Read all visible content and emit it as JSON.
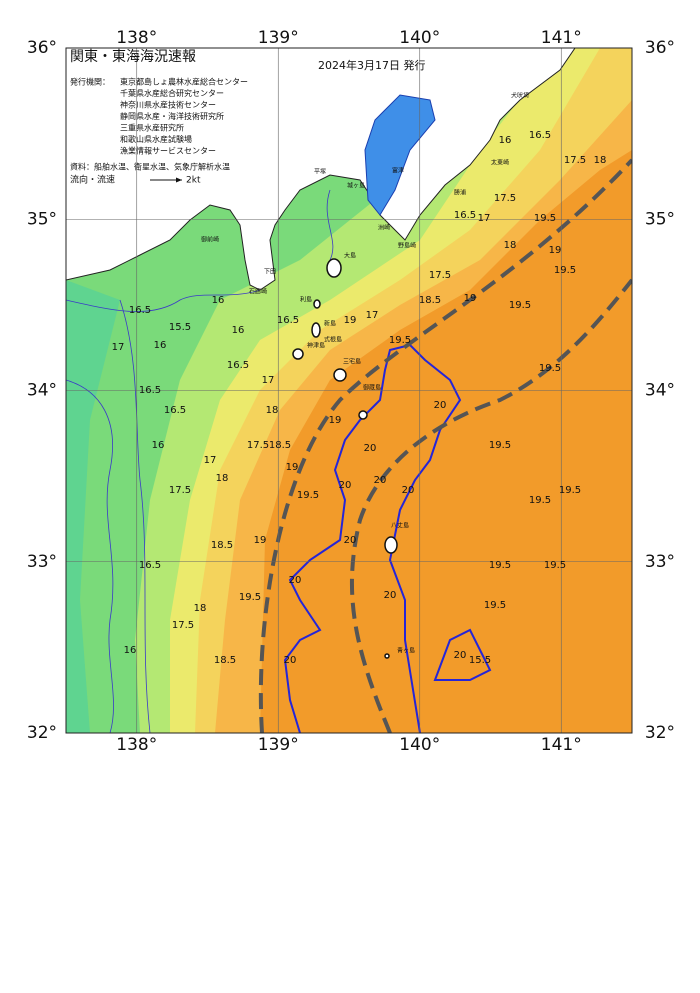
{
  "header": {
    "title": "関東・東海海況速報",
    "date": "2024年3月17日 発行",
    "issuer_label": "発行機関：",
    "issuers": [
      "東京都島しょ農林水産総合センター",
      "千葉県水産総合研究センター",
      "神奈川県水産技術センター",
      "静岡県水産・海洋技術研究所",
      "三重県水産研究所",
      "和歌山県水産試験場",
      "漁業情報サービスセンター"
    ],
    "source": "資料：船舶水温、衛星水温、気象庁解析水温",
    "current_legend": "流向・流速",
    "current_unit": "2kt"
  },
  "map": {
    "lon_ticks": [
      {
        "value": 138,
        "label": "138°"
      },
      {
        "value": 139,
        "label": "139°"
      },
      {
        "value": 140,
        "label": "140°"
      },
      {
        "value": 141,
        "label": "141°"
      }
    ],
    "lat_ticks": [
      {
        "value": 36,
        "label": "36°"
      },
      {
        "value": 35,
        "label": "35°"
      },
      {
        "value": 34,
        "label": "34°"
      },
      {
        "value": 33,
        "label": "33°"
      },
      {
        "value": 32,
        "label": "32°"
      }
    ],
    "isotherm_labels": [
      "16.5",
      "15.5",
      "16",
      "17",
      "16",
      "16",
      "16.5",
      "16.5",
      "16.5",
      "16",
      "17.5",
      "16.5",
      "18",
      "17.5",
      "18.5",
      "16",
      "17",
      "18",
      "17.5",
      "18.5",
      "17",
      "18",
      "18.5",
      "19",
      "19.5",
      "19",
      "19.5",
      "16",
      "16.5",
      "17.5",
      "18",
      "17.5",
      "16.5",
      "17",
      "19.5",
      "18",
      "17.5",
      "18.5",
      "19",
      "19",
      "19.5",
      "19.5",
      "19.5",
      "19.5",
      "20",
      "19.5",
      "19.5",
      "19.5",
      "19.5",
      "19.5",
      "19.5",
      "19",
      "19",
      "20",
      "20",
      "20",
      "20",
      "20",
      "20",
      "20",
      "20",
      "20",
      "15.5",
      "16.5",
      "17"
    ],
    "place_names": [
      "大島",
      "利島",
      "新島",
      "式根島",
      "神津島",
      "三宅島",
      "御蔵島",
      "八丈島",
      "青ヶ島",
      "野島崎",
      "洲崎",
      "犬吠埼",
      "勝浦",
      "太東崎",
      "城ヶ島",
      "下田",
      "石廊崎",
      "御前崎",
      "平塚",
      "富津"
    ]
  }
}
